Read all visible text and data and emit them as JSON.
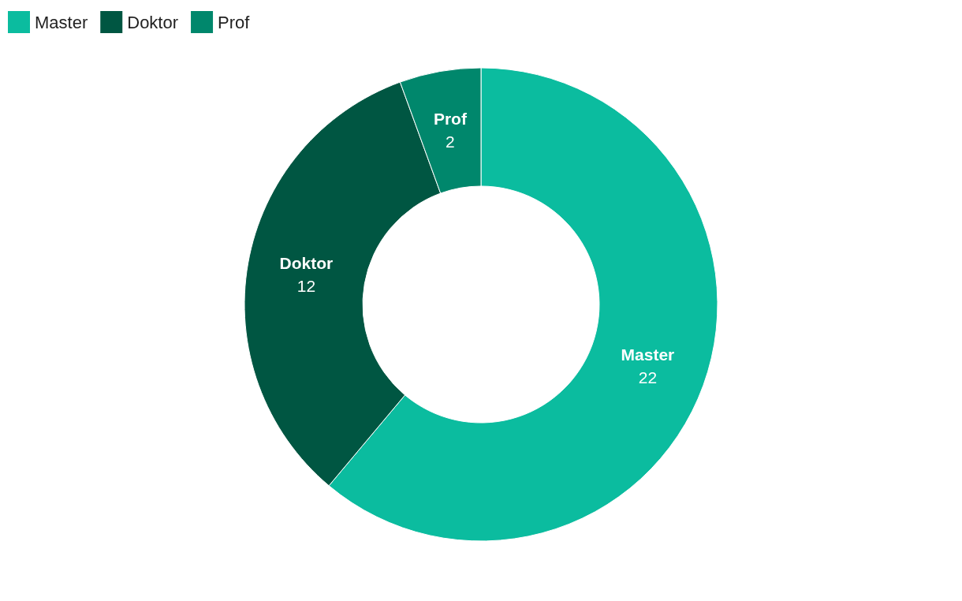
{
  "chart_data": {
    "type": "donut",
    "categories": [
      "Master",
      "Doktor",
      "Prof"
    ],
    "values": [
      22,
      12,
      2
    ],
    "colors": [
      "#0bbc9f",
      "#005642",
      "#00876c"
    ],
    "data_labels": true,
    "legend": "top left"
  }
}
